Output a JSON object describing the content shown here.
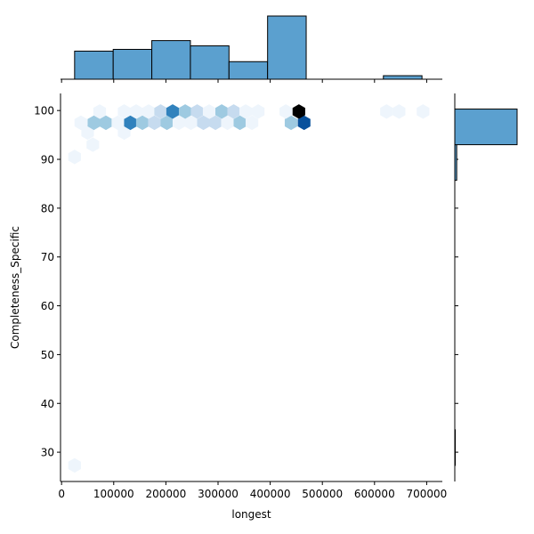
{
  "chart_data": {
    "type": "hexbin",
    "subtype": "jointplot",
    "xlabel": "longest",
    "ylabel": "Completeness_Specific",
    "xlim": [
      -2000,
      730000
    ],
    "ylim": [
      24,
      103.5
    ],
    "x_ticks": [
      0,
      100000,
      200000,
      300000,
      400000,
      500000,
      600000,
      700000
    ],
    "x_tick_labels": [
      "0",
      "100000",
      "200000",
      "300000",
      "400000",
      "500000",
      "600000",
      "700000"
    ],
    "y_ticks": [
      30,
      40,
      50,
      60,
      70,
      80,
      90,
      100
    ],
    "y_tick_labels": [
      "30",
      "40",
      "50",
      "60",
      "70",
      "80",
      "90",
      "100"
    ],
    "colormap": [
      "#eef5fc",
      "#c6dbef",
      "#9ecae1",
      "#6baed6",
      "#3182bd",
      "#08519c",
      "#000000"
    ],
    "hex_bins": [
      {
        "x": 25000,
        "y": 27.3,
        "count": 1
      },
      {
        "x": 25000,
        "y": 90.5,
        "count": 1
      },
      {
        "x": 60000,
        "y": 93.0,
        "count": 1
      },
      {
        "x": 50000,
        "y": 95.5,
        "count": 1
      },
      {
        "x": 120000,
        "y": 95.5,
        "count": 1
      },
      {
        "x": 37000,
        "y": 97.5,
        "count": 1
      },
      {
        "x": 62000,
        "y": 97.5,
        "count": 3
      },
      {
        "x": 85000,
        "y": 97.5,
        "count": 3
      },
      {
        "x": 108000,
        "y": 97.5,
        "count": 1
      },
      {
        "x": 132000,
        "y": 97.5,
        "count": 4
      },
      {
        "x": 155000,
        "y": 97.5,
        "count": 3
      },
      {
        "x": 178000,
        "y": 97.5,
        "count": 2
      },
      {
        "x": 202000,
        "y": 97.5,
        "count": 3
      },
      {
        "x": 225000,
        "y": 97.5,
        "count": 1
      },
      {
        "x": 248000,
        "y": 97.5,
        "count": 1
      },
      {
        "x": 272000,
        "y": 97.5,
        "count": 2
      },
      {
        "x": 295000,
        "y": 97.5,
        "count": 2
      },
      {
        "x": 318000,
        "y": 97.5,
        "count": 1
      },
      {
        "x": 342000,
        "y": 97.5,
        "count": 3
      },
      {
        "x": 365000,
        "y": 97.5,
        "count": 1
      },
      {
        "x": 440000,
        "y": 97.5,
        "count": 3
      },
      {
        "x": 465000,
        "y": 97.5,
        "count": 5
      },
      {
        "x": 73000,
        "y": 99.8,
        "count": 1
      },
      {
        "x": 120000,
        "y": 99.8,
        "count": 1
      },
      {
        "x": 143000,
        "y": 99.8,
        "count": 1
      },
      {
        "x": 167000,
        "y": 99.8,
        "count": 1
      },
      {
        "x": 190000,
        "y": 99.8,
        "count": 2
      },
      {
        "x": 213000,
        "y": 99.8,
        "count": 4
      },
      {
        "x": 237000,
        "y": 99.8,
        "count": 3
      },
      {
        "x": 260000,
        "y": 99.8,
        "count": 2
      },
      {
        "x": 283000,
        "y": 99.8,
        "count": 1
      },
      {
        "x": 307000,
        "y": 99.8,
        "count": 3
      },
      {
        "x": 330000,
        "y": 99.8,
        "count": 2
      },
      {
        "x": 353000,
        "y": 99.8,
        "count": 1
      },
      {
        "x": 377000,
        "y": 99.8,
        "count": 1
      },
      {
        "x": 430000,
        "y": 99.8,
        "count": 1
      },
      {
        "x": 455000,
        "y": 99.8,
        "count": 6
      },
      {
        "x": 623000,
        "y": 99.8,
        "count": 1
      },
      {
        "x": 647000,
        "y": 99.8,
        "count": 1
      },
      {
        "x": 693000,
        "y": 99.8,
        "count": 1
      }
    ],
    "marginal_x": {
      "bin_edges": [
        25000,
        99000,
        173000,
        247000,
        321000,
        395000,
        469000,
        543000,
        617000,
        691000
      ],
      "counts": [
        8,
        8.5,
        11,
        9.5,
        5,
        18,
        0,
        0,
        1
      ]
    },
    "marginal_y": {
      "bin_edges": [
        27.3,
        34.6,
        41.9,
        49.2,
        56.5,
        63.8,
        71.1,
        78.4,
        85.7,
        93.0,
        100.3
      ],
      "counts": [
        0.4,
        0,
        0,
        0,
        0,
        0,
        0,
        0,
        1.5,
        49
      ]
    }
  }
}
